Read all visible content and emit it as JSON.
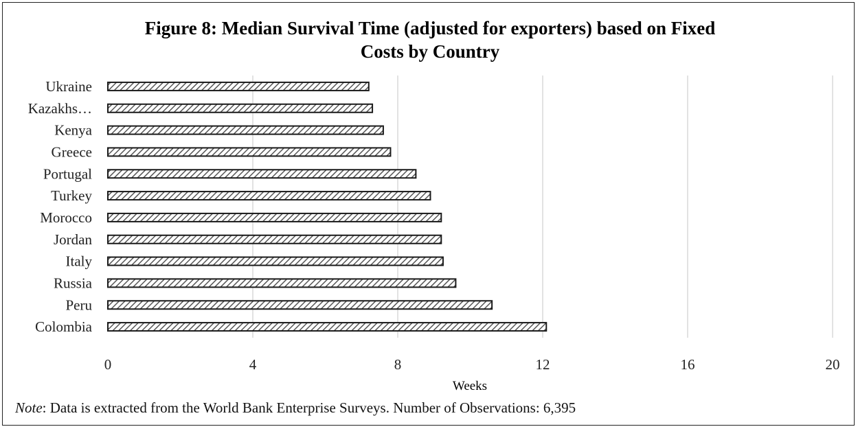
{
  "chart_data": {
    "type": "bar",
    "orientation": "horizontal",
    "title": "Figure 8: Median Survival Time (adjusted for exporters) based on Fixed Costs by Country",
    "title_lines": [
      "Figure 8: Median Survival Time (adjusted for exporters) based on Fixed",
      "Costs by Country"
    ],
    "xlabel": "Weeks",
    "ylabel": "",
    "categories": [
      "Ukraine",
      "Kazakhs…",
      "Kenya",
      "Greece",
      "Portugal",
      "Turkey",
      "Morocco",
      "Jordan",
      "Italy",
      "Russia",
      "Peru",
      "Colombia"
    ],
    "values": [
      7.2,
      7.3,
      7.6,
      7.8,
      8.5,
      8.9,
      9.2,
      9.2,
      9.25,
      9.6,
      10.6,
      12.1
    ],
    "xlim": [
      0,
      20
    ],
    "xticks": [
      "0",
      "4",
      "8",
      "12",
      "16",
      "20"
    ],
    "xtick_values": [
      0,
      4,
      8,
      12,
      16,
      20
    ],
    "grid": "vertical",
    "bar_fill": "hatched",
    "colors": {
      "bar_stroke": "#1a1a1a",
      "hatch": "#555555",
      "grid": "#d9d9d9"
    }
  },
  "note": {
    "label": "Note",
    "text": ": Data is extracted from the World Bank Enterprise Surveys. Number of Observations: 6,395"
  }
}
